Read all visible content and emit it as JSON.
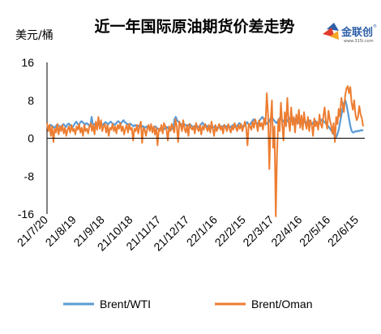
{
  "title": "近一年国际原油期货价差走势",
  "unit_label": "美元/桶",
  "logo": {
    "text": "金联创",
    "sub": "www.315i.com",
    "mark": "®"
  },
  "colors": {
    "brent_wti": "#5b9bd5",
    "brent_oman": "#ed7d31",
    "text": "#000000",
    "axis": "#000000"
  },
  "chart_data": {
    "type": "line",
    "title": "近一年国际原油期货价差走势",
    "ylabel": "美元/桶",
    "ylim": [
      -16,
      16
    ],
    "yticks": [
      16,
      8,
      0,
      -8,
      -16
    ],
    "grid": false,
    "legend_position": "bottom",
    "x_start": "21/7/20",
    "x_end": "22/6/15",
    "x_tick_labels": [
      "21/7/20",
      "21/8/19",
      "21/9/18",
      "21/10/18",
      "21/11/17",
      "21/12/17",
      "22/1/16",
      "22/2/15",
      "22/3/17",
      "22/4/16",
      "22/5/16",
      "22/6/15"
    ],
    "series": [
      {
        "name": "Brent/WTI",
        "values": [
          2.3,
          2.5,
          2.2,
          2.8,
          2.6,
          2.4,
          2.1,
          2.6,
          2.9,
          2.7,
          2.5,
          2.3,
          2.8,
          3.0,
          2.6,
          2.4,
          2.9,
          3.1,
          2.8,
          2.5,
          2.3,
          2.7,
          3.2,
          3.5,
          3.0,
          2.8,
          3.3,
          3.6,
          3.4,
          3.1,
          2.9,
          3.2,
          3.0,
          2.7,
          2.5,
          4.5,
          2.8,
          3.0,
          2.6,
          2.4,
          2.9,
          3.1,
          3.3,
          3.0,
          2.8,
          3.2,
          3.4,
          3.1,
          2.9,
          3.3,
          3.5,
          3.2,
          3.0,
          2.8,
          3.1,
          3.4,
          3.6,
          3.3,
          3.1,
          3.5,
          3.8,
          3.4,
          3.2,
          3.0,
          2.8,
          3.1,
          2.9,
          2.7,
          2.5,
          2.8,
          2.6,
          2.4,
          2.7,
          2.5,
          2.3,
          2.6,
          2.4,
          2.2,
          2.5,
          2.3,
          2.1,
          2.4,
          2.2,
          2.0,
          2.3,
          2.5,
          2.2,
          2.0,
          1.8,
          2.1,
          2.3,
          2.0,
          1.9,
          2.2,
          2.4,
          2.1,
          1.9,
          1.7,
          2.0,
          2.2,
          4.0,
          4.5,
          3.8,
          3.5,
          3.2,
          3.0,
          2.8,
          3.1,
          2.9,
          2.7,
          2.5,
          2.8,
          3.0,
          2.7,
          2.5,
          2.3,
          2.6,
          2.8,
          2.5,
          2.3,
          2.6,
          3.0,
          3.3,
          2.8,
          2.5,
          2.7,
          2.4,
          2.2,
          2.5,
          2.3,
          2.1,
          2.4,
          2.6,
          2.3,
          2.1,
          2.4,
          2.6,
          2.3,
          2.5,
          2.8,
          2.6,
          2.4,
          2.7,
          2.5,
          2.3,
          2.6,
          2.8,
          2.5,
          2.3,
          2.6,
          2.9,
          3.2,
          2.8,
          2.6,
          2.4,
          2.7,
          3.0,
          3.4,
          3.0,
          2.8,
          3.2,
          3.6,
          4.0,
          3.5,
          3.2,
          3.0,
          3.4,
          3.8,
          4.2,
          4.5,
          4.0,
          3.6,
          3.3,
          3.0,
          3.4,
          4.0,
          4.5,
          4.2,
          3.8,
          3.5,
          3.2,
          3.6,
          4.0,
          4.4,
          4.0,
          3.7,
          3.4,
          3.1,
          3.5,
          3.9,
          4.3,
          3.9,
          3.6,
          3.3,
          3.7,
          4.1,
          3.8,
          3.5,
          3.2,
          3.6,
          4.0,
          3.7,
          3.4,
          3.1,
          3.5,
          3.9,
          3.6,
          3.3,
          3.0,
          3.4,
          3.8,
          3.5,
          3.2,
          2.9,
          3.3,
          3.7,
          4.0,
          3.6,
          3.3,
          3.0,
          2.7,
          2.4,
          2.0,
          1.6,
          1.2,
          0.8,
          0.5,
          0.3,
          1.0,
          2.0,
          3.5,
          5.0,
          6.5,
          7.5,
          8.0,
          7.0,
          5.5,
          4.0,
          2.5,
          1.5,
          1.2,
          1.3,
          1.5,
          1.4,
          1.6,
          1.5,
          1.7,
          1.6,
          1.8
        ]
      },
      {
        "name": "Brent/Oman",
        "values": [
          3.2,
          1.5,
          2.8,
          0.5,
          2.5,
          -0.8,
          2.0,
          1.2,
          3.0,
          0.8,
          2.5,
          1.5,
          2.8,
          1.0,
          2.2,
          0.5,
          1.8,
          2.5,
          1.2,
          2.8,
          1.5,
          2.0,
          0.8,
          2.5,
          1.8,
          3.0,
          1.2,
          2.2,
          0.5,
          2.8,
          1.5,
          2.0,
          1.0,
          2.5,
          3.2,
          1.5,
          2.8,
          0.8,
          3.5,
          1.8,
          4.5,
          2.0,
          3.8,
          1.5,
          2.5,
          3.0,
          1.2,
          2.8,
          0.5,
          2.2,
          1.8,
          3.0,
          1.5,
          2.5,
          1.0,
          2.8,
          2.0,
          3.2,
          1.5,
          2.5,
          0.8,
          2.0,
          2.8,
          1.2,
          3.0,
          1.8,
          2.2,
          -0.5,
          2.0,
          1.5,
          2.8,
          1.0,
          2.5,
          3.5,
          -1.0,
          2.2,
          1.8,
          0.5,
          2.0,
          2.8,
          1.5,
          3.0,
          1.2,
          2.5,
          0.8,
          2.2,
          -1.5,
          2.0,
          1.5,
          2.8,
          1.0,
          3.2,
          2.5,
          1.8,
          -0.5,
          2.5,
          1.5,
          3.0,
          2.2,
          1.2,
          4.0,
          2.5,
          -0.8,
          3.5,
          2.8,
          1.5,
          3.8,
          2.0,
          1.2,
          2.8,
          0.5,
          3.0,
          2.2,
          1.8,
          2.5,
          1.0,
          3.2,
          2.0,
          1.5,
          2.8,
          0.8,
          2.5,
          1.8,
          3.0,
          2.2,
          1.5,
          2.8,
          1.2,
          3.5,
          2.0,
          0.5,
          2.8,
          1.5,
          2.2,
          3.0,
          1.8,
          2.5,
          1.0,
          2.8,
          2.2,
          1.5,
          3.0,
          2.0,
          1.2,
          2.5,
          1.8,
          3.2,
          2.2,
          1.5,
          2.8,
          2.0,
          3.0,
          1.5,
          2.5,
          3.5,
          2.2,
          -1.5,
          3.0,
          2.5,
          1.8,
          3.5,
          2.2,
          4.0,
          3.0,
          1.5,
          3.8,
          2.5,
          3.2,
          1.8,
          4.2,
          2.8,
          9.5,
          5.0,
          -6.5,
          3.5,
          8.0,
          -2.0,
          2.5,
          -16.5,
          -3.0,
          4.0,
          1.5,
          7.5,
          3.0,
          -0.5,
          5.5,
          2.5,
          8.5,
          3.5,
          1.5,
          6.5,
          2.8,
          4.5,
          1.2,
          5.0,
          3.0,
          6.0,
          2.2,
          4.8,
          1.8,
          5.5,
          3.2,
          2.0,
          4.5,
          1.5,
          3.8,
          2.8,
          0.5,
          4.2,
          2.5,
          3.5,
          1.8,
          5.0,
          3.0,
          2.2,
          4.5,
          6.5,
          3.5,
          2.0,
          5.8,
          4.0,
          2.8,
          1.0,
          3.2,
          -0.8,
          4.5,
          3.0,
          6.2,
          4.5,
          8.5,
          7.0,
          5.5,
          9.0,
          10.5,
          11.0,
          9.5,
          10.8,
          7.5,
          6.0,
          8.0,
          5.0,
          3.8,
          4.5,
          6.8,
          5.0,
          4.2,
          2.5
        ]
      }
    ]
  }
}
